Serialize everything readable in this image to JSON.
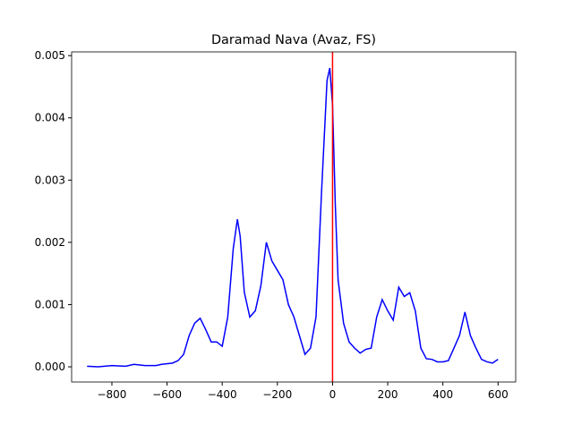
{
  "chart_data": {
    "type": "line",
    "title": "Daramad Nava (Avaz, FS)",
    "x": [
      -890,
      -850,
      -800,
      -750,
      -720,
      -680,
      -640,
      -620,
      -580,
      -560,
      -540,
      -520,
      -500,
      -480,
      -460,
      -440,
      -420,
      -400,
      -380,
      -360,
      -345,
      -335,
      -320,
      -300,
      -280,
      -260,
      -240,
      -220,
      -200,
      -180,
      -160,
      -140,
      -120,
      -100,
      -80,
      -60,
      -40,
      -20,
      -10,
      0,
      10,
      20,
      40,
      60,
      80,
      100,
      120,
      140,
      160,
      180,
      200,
      220,
      240,
      260,
      280,
      300,
      320,
      340,
      360,
      380,
      400,
      420,
      440,
      460,
      480,
      500,
      520,
      540,
      560,
      580,
      600
    ],
    "series": [
      {
        "color": "#0000ff",
        "values": [
          1e-05,
          0.0,
          2e-05,
          1e-05,
          4e-05,
          2e-05,
          2e-05,
          4e-05,
          6e-05,
          0.0001,
          0.0002,
          0.0005,
          0.0007,
          0.00078,
          0.0006,
          0.0004,
          0.0004,
          0.00033,
          0.0008,
          0.0019,
          0.00237,
          0.0021,
          0.0012,
          0.0008,
          0.0009,
          0.0013,
          0.002,
          0.0017,
          0.00155,
          0.0014,
          0.001,
          0.0008,
          0.0005,
          0.0002,
          0.0003,
          0.0008,
          0.0028,
          0.0046,
          0.0048,
          0.0042,
          0.0026,
          0.0014,
          0.0007,
          0.0004,
          0.0003,
          0.00022,
          0.00028,
          0.0003,
          0.0008,
          0.00108,
          0.0009,
          0.00075,
          0.00128,
          0.00113,
          0.00119,
          0.0009,
          0.0003,
          0.00013,
          0.00012,
          8e-05,
          8e-05,
          0.0001,
          0.0003,
          0.0005,
          0.00088,
          0.0005,
          0.0003,
          0.00012,
          8e-05,
          6e-05,
          0.00012
        ]
      }
    ],
    "vline": {
      "x": 0,
      "color": "#ff0000"
    },
    "xlim": [
      -946,
      664
    ],
    "xticks": [
      {
        "value": -800,
        "label": "−800"
      },
      {
        "value": -600,
        "label": "−600"
      },
      {
        "value": -400,
        "label": "−400"
      },
      {
        "value": -200,
        "label": "−200"
      },
      0,
      200,
      400,
      600
    ],
    "ylim": [
      -0.000244,
      0.00506
    ],
    "yticks": [
      {
        "value": 0,
        "label": "0.000"
      },
      0.001,
      0.002,
      0.003,
      0.004,
      0.005
    ],
    "grid": false
  }
}
